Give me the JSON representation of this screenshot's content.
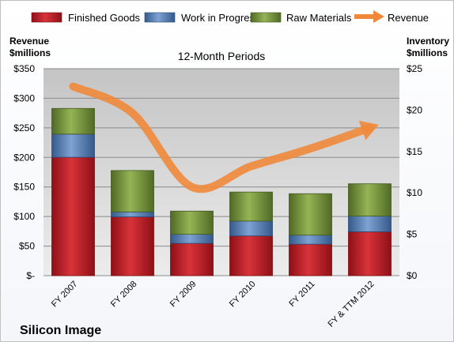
{
  "chart_data": {
    "type": "bar",
    "stacked": true,
    "subtitle": "12-Month Periods",
    "company": "Silicon Image",
    "left_axis": {
      "title_line1": "Revenue",
      "title_line2": "$millions",
      "range": [
        0,
        350
      ],
      "ticks": [
        "$-",
        "$50",
        "$100",
        "$150",
        "$200",
        "$250",
        "$300",
        "$350"
      ]
    },
    "right_axis": {
      "title_line1": "Inventory",
      "title_line2": "$millions",
      "range": [
        0,
        25
      ],
      "ticks": [
        "$0",
        "$5",
        "$10",
        "$15",
        "$20",
        "$25"
      ]
    },
    "categories": [
      "FY 2007",
      "FY 2008",
      "FY 2009",
      "FY 2010",
      "FY 2011",
      "FY & TTM 2012"
    ],
    "legend_position": "top",
    "grid": true,
    "series": [
      {
        "name": "Finished Goods",
        "kind": "bar",
        "axis": "right",
        "color": "#c0242c",
        "values": [
          14.3,
          7.1,
          3.9,
          4.8,
          3.8,
          5.3
        ]
      },
      {
        "name": "Work in Progress",
        "kind": "bar",
        "axis": "right",
        "color": "#4f81bd",
        "values": [
          2.8,
          0.6,
          1.1,
          1.8,
          1.1,
          1.9
        ]
      },
      {
        "name": "Raw Materials",
        "kind": "bar",
        "axis": "right",
        "color": "#76923c",
        "values": [
          3.1,
          5.0,
          2.8,
          3.5,
          5.0,
          3.9
        ]
      },
      {
        "name": "Revenue",
        "kind": "line",
        "axis": "left",
        "color": "#f0883a",
        "values": [
          320,
          275,
          150,
          185,
          215,
          250
        ]
      }
    ]
  }
}
